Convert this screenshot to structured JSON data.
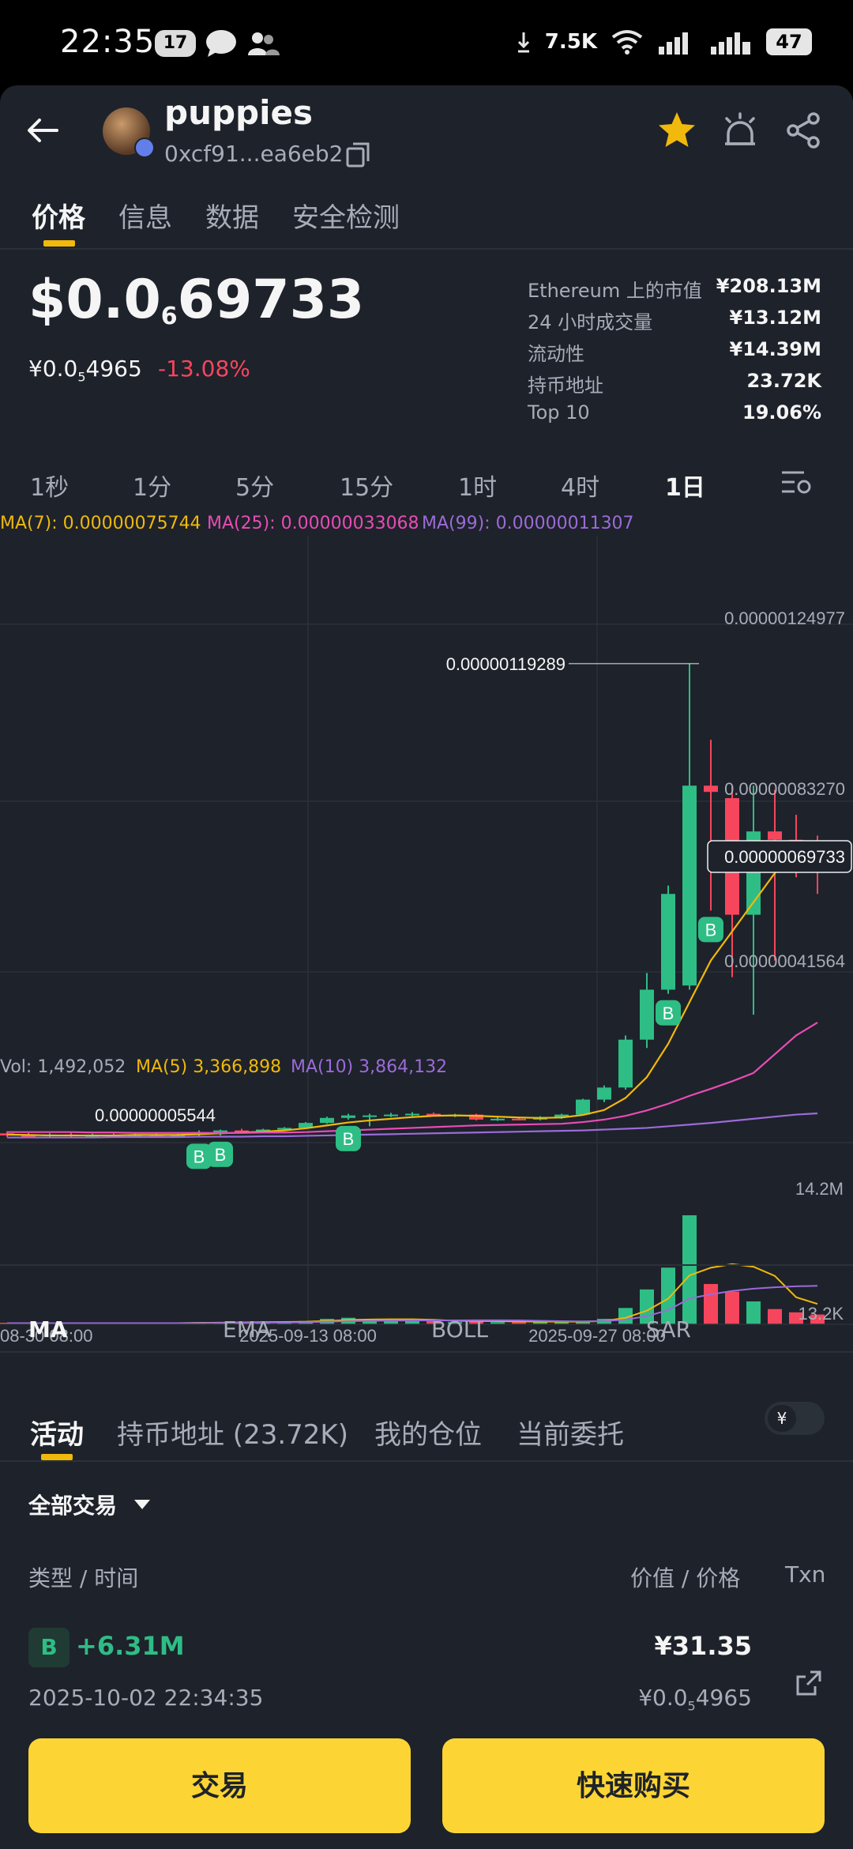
{
  "status_bar": {
    "time": "22:35",
    "notif_count": "17",
    "net_speed": "7.5K",
    "battery": "47"
  },
  "header": {
    "token_name": "puppies",
    "token_address": "0xcf91...ea6eb2"
  },
  "tabs": [
    "价格",
    "信息",
    "数据",
    "安全检测"
  ],
  "price": {
    "main_prefix": "$0.0",
    "main_sub": "6",
    "main_suffix": "69733",
    "cny_prefix": "¥0.0",
    "cny_sub": "5",
    "cny_suffix": "4965",
    "change": "-13.08%"
  },
  "stats": [
    {
      "label": "Ethereum 上的市值",
      "value": "¥208.13M"
    },
    {
      "label": "24 小时成交量",
      "value": "¥13.12M"
    },
    {
      "label": "流动性",
      "value": "¥14.39M"
    },
    {
      "label": "持币地址",
      "value": "23.72K"
    },
    {
      "label": "Top 10",
      "value": "19.06%"
    }
  ],
  "intervals": [
    "1秒",
    "1分",
    "5分",
    "15分",
    "1时",
    "4时",
    "1日"
  ],
  "ma_legend": {
    "ma7": "MA(7): 0.00000075744",
    "ma25": "MA(25): 0.00000033068",
    "ma99": "MA(99): 0.00000011307"
  },
  "vol_legend": {
    "vol": "Vol: 1,492,052",
    "ma5": "MA(5) 3,366,898",
    "ma10": "MA(10) 3,864,132"
  },
  "chart_data": {
    "type": "candlestick",
    "y_axis_labels": [
      "0.00000124977",
      "0.00000083270",
      "0.00000041564"
    ],
    "current_price_label": "0.00000069733",
    "high_marker": "0.00000119289",
    "low_marker": "0.00000005544",
    "volume_axis_labels": [
      "14.2M",
      "13.2K"
    ],
    "x_labels": [
      "08-30 08:00",
      "2025-09-13 08:00",
      "2025-09-27 08:00"
    ],
    "buy_marker_label": "B",
    "candles": [
      {
        "o": 6.5e-08,
        "h": 7e-08,
        "l": 5.6e-08,
        "c": 6e-08
      },
      {
        "o": 6e-08,
        "h": 6.6e-08,
        "l": 5.6e-08,
        "c": 5.8e-08
      },
      {
        "o": 5.9e-08,
        "h": 6.5e-08,
        "l": 5.6e-08,
        "c": 6.2e-08
      },
      {
        "o": 6.2e-08,
        "h": 6.6e-08,
        "l": 5.7e-08,
        "c": 5.9e-08
      },
      {
        "o": 5.9e-08,
        "h": 6.4e-08,
        "l": 5.6e-08,
        "c": 6.1e-08
      },
      {
        "o": 6.1e-08,
        "h": 6.5e-08,
        "l": 5.8e-08,
        "c": 6e-08
      },
      {
        "o": 6e-08,
        "h": 6.4e-08,
        "l": 5.7e-08,
        "c": 6.2e-08
      },
      {
        "o": 6.2e-08,
        "h": 6.6e-08,
        "l": 5.8e-08,
        "c": 6e-08
      },
      {
        "o": 6e-08,
        "h": 6.4e-08,
        "l": 5.7e-08,
        "c": 6.2e-08
      },
      {
        "o": 6.2e-08,
        "h": 7.2e-08,
        "l": 5.54e-08,
        "c": 6.8e-08
      },
      {
        "o": 6.8e-08,
        "h": 7.4e-08,
        "l": 6e-08,
        "c": 7.2e-08
      },
      {
        "o": 7.2e-08,
        "h": 7.6e-08,
        "l": 6.6e-08,
        "c": 7e-08
      },
      {
        "o": 7e-08,
        "h": 7.6e-08,
        "l": 6.6e-08,
        "c": 7.4e-08
      },
      {
        "o": 7.4e-08,
        "h": 8e-08,
        "l": 7e-08,
        "c": 7.8e-08
      },
      {
        "o": 7.8e-08,
        "h": 9.2e-08,
        "l": 7.6e-08,
        "c": 9e-08
      },
      {
        "o": 9e-08,
        "h": 1.05e-07,
        "l": 8.8e-08,
        "c": 1.02e-07
      },
      {
        "o": 1.02e-07,
        "h": 1.12e-07,
        "l": 9.8e-08,
        "c": 1.08e-07
      },
      {
        "o": 1.08e-07,
        "h": 1.12e-07,
        "l": 8.2e-08,
        "c": 1.08e-07
      },
      {
        "o": 1.08e-07,
        "h": 1.14e-07,
        "l": 1.04e-07,
        "c": 1.1e-07
      },
      {
        "o": 1.1e-07,
        "h": 1.16e-07,
        "l": 1.06e-07,
        "c": 1.12e-07
      },
      {
        "o": 1.12e-07,
        "h": 1.15e-07,
        "l": 1.06e-07,
        "c": 1.09e-07
      },
      {
        "o": 1.09e-07,
        "h": 1.12e-07,
        "l": 1.04e-07,
        "c": 1.1e-07
      },
      {
        "o": 1.1e-07,
        "h": 1.12e-07,
        "l": 9.6e-08,
        "c": 9.8e-08
      },
      {
        "o": 9.8e-08,
        "h": 1.04e-07,
        "l": 9.5e-08,
        "c": 1e-07
      },
      {
        "o": 1e-07,
        "h": 1.04e-07,
        "l": 9.6e-08,
        "c": 9.8e-08
      },
      {
        "o": 9.8e-08,
        "h": 1.06e-07,
        "l": 9.6e-08,
        "c": 1.04e-07
      },
      {
        "o": 1.04e-07,
        "h": 1.12e-07,
        "l": 1e-07,
        "c": 1.1e-07
      },
      {
        "o": 1.1e-07,
        "h": 1.48e-07,
        "l": 1.08e-07,
        "c": 1.46e-07
      },
      {
        "o": 1.46e-07,
        "h": 1.8e-07,
        "l": 1.4e-07,
        "c": 1.75e-07
      },
      {
        "o": 1.75e-07,
        "h": 3e-07,
        "l": 1.7e-07,
        "c": 2.9e-07
      },
      {
        "o": 2.9e-07,
        "h": 4.5e-07,
        "l": 2.7e-07,
        "c": 4.1e-07
      },
      {
        "o": 4.1e-07,
        "h": 6.6e-07,
        "l": 4e-07,
        "c": 6.4e-07
      },
      {
        "o": 4.2e-07,
        "h": 1.1929e-06,
        "l": 4.1e-07,
        "c": 9e-07
      },
      {
        "o": 9e-07,
        "h": 1.01e-06,
        "l": 6e-07,
        "c": 8.85e-07
      },
      {
        "o": 8.7e-07,
        "h": 9e-07,
        "l": 4.4e-07,
        "c": 5.9e-07
      },
      {
        "o": 5.9e-07,
        "h": 9e-07,
        "l": 3.5e-07,
        "c": 7.9e-07
      },
      {
        "o": 7.9e-07,
        "h": 8.9e-07,
        "l": 4.8e-07,
        "c": 7.7e-07
      },
      {
        "o": 7.7e-07,
        "h": 8.3e-07,
        "l": 6.8e-07,
        "c": 7.45e-07
      },
      {
        "o": 7.45e-07,
        "h": 7.8e-07,
        "l": 6.4e-07,
        "c": 6.973e-07
      }
    ],
    "ma7": [
      6.2e-08,
      6.1e-08,
      6e-08,
      6e-08,
      6e-08,
      6e-08,
      6.1e-08,
      6.1e-08,
      6.1e-08,
      6.3e-08,
      6.5e-08,
      6.7e-08,
      6.9e-08,
      7.2e-08,
      7.7e-08,
      8.4e-08,
      9.1e-08,
      9.6e-08,
      1e-07,
      1.04e-07,
      1.07e-07,
      1.08e-07,
      1.07e-07,
      1.05e-07,
      1.03e-07,
      1.02e-07,
      1.03e-07,
      1.09e-07,
      1.21e-07,
      1.5e-07,
      2e-07,
      2.8e-07,
      3.8e-07,
      4.8e-07,
      5.5e-07,
      6.2e-07,
      6.9e-07,
      7.4e-07,
      7.57e-07
    ],
    "ma25": [
      6.8e-08,
      6.8e-08,
      6.8e-08,
      6.8e-08,
      6.7e-08,
      6.7e-08,
      6.6e-08,
      6.6e-08,
      6.6e-08,
      6.6e-08,
      6.6e-08,
      6.6e-08,
      6.7e-08,
      6.7e-08,
      6.8e-08,
      7e-08,
      7.2e-08,
      7.4e-08,
      7.6e-08,
      7.8e-08,
      8e-08,
      8.2e-08,
      8.4e-08,
      8.5e-08,
      8.6e-08,
      8.7e-08,
      8.8e-08,
      9.2e-08,
      9.8e-08,
      1.07e-07,
      1.2e-07,
      1.36e-07,
      1.55e-07,
      1.72e-07,
      1.9e-07,
      2.1e-07,
      2.55e-07,
      3e-07,
      3.31e-07
    ],
    "ma99": [
      5.5e-08,
      5.5e-08,
      5.5e-08,
      5.5e-08,
      5.5e-08,
      5.6e-08,
      5.6e-08,
      5.6e-08,
      5.6e-08,
      5.7e-08,
      5.7e-08,
      5.7e-08,
      5.8e-08,
      5.8e-08,
      5.9e-08,
      6e-08,
      6.1e-08,
      6.2e-08,
      6.3e-08,
      6.4e-08,
      6.5e-08,
      6.6e-08,
      6.7e-08,
      6.8e-08,
      6.9e-08,
      7e-08,
      7.1e-08,
      7.2e-08,
      7.4e-08,
      7.6e-08,
      7.8e-08,
      8.2e-08,
      8.6e-08,
      9e-08,
      9.5e-08,
      1e-07,
      1.05e-07,
      1.1e-07,
      1.13e-07
    ],
    "volumes": [
      0.01,
      0.01,
      0.01,
      0.01,
      0.01,
      0.01,
      0.01,
      0.01,
      0.01,
      0.02,
      0.02,
      0.02,
      0.02,
      0.02,
      0.03,
      0.05,
      0.06,
      0.04,
      0.03,
      0.03,
      0.03,
      0.02,
      0.03,
      0.02,
      0.02,
      0.02,
      0.02,
      0.03,
      0.05,
      0.15,
      0.32,
      0.52,
      1.0,
      0.37,
      0.3,
      0.21,
      0.14,
      0.11,
      0.09
    ],
    "buy_markers": [
      9,
      10,
      16,
      31,
      33
    ]
  },
  "indicators": [
    "MA",
    "EMA",
    "BOLL",
    "SAR"
  ],
  "section_tabs": [
    "活动",
    "持币地址 (23.72K)",
    "我的仓位",
    "当前委托"
  ],
  "currency_symbol": "¥",
  "filter_label": "全部交易",
  "table_headers": {
    "type_time": "类型 / 时间",
    "value_price": "价值 / 价格",
    "txn": "Txn"
  },
  "trade": {
    "badge": "B",
    "amount": "+6.31M",
    "time": "2025-10-02 22:34:35",
    "value": "¥31.35",
    "price_prefix": "¥0.0",
    "price_sub": "5",
    "price_suffix": "4965"
  },
  "buttons": {
    "trade": "交易",
    "quick_buy": "快速购买"
  },
  "colors": {
    "up": "#2ebd85",
    "down": "#f6465d",
    "ma7": "#f0b90b",
    "ma25": "#e84cb5",
    "ma99": "#9b6bd8",
    "accent": "#fcd535"
  }
}
